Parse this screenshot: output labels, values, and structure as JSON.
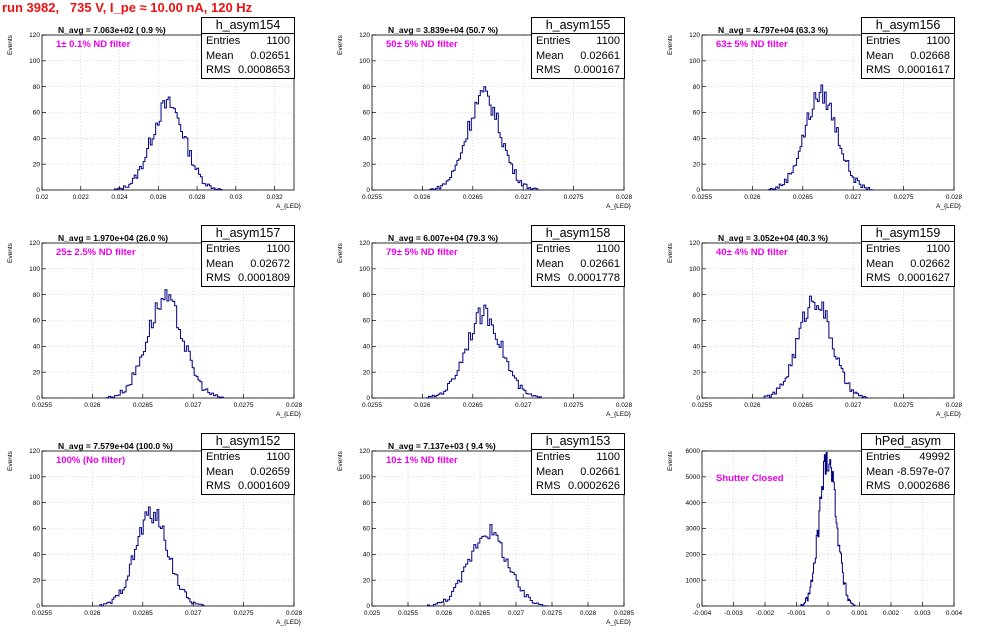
{
  "run_title": "run 3982,   735 V, I_pe ≈ 10.00 nA, 120 Hz",
  "colors": {
    "title": "#ee1111",
    "histogram_line": "#000080",
    "filter_text": "#ee00ee",
    "grid": "#c8c8c8"
  },
  "chart_data": [
    {
      "type": "histogram",
      "name": "h_asym154",
      "n_avg_label": "N_avg = 7.063e+02 ( 0.9 %)",
      "filter_label": "1± 0.1% ND filter",
      "stats": {
        "entries": "1100",
        "mean": "0.02651",
        "rms": "0.0008653"
      },
      "ylabel": "Events",
      "xlabel": "A_{LED}",
      "xlim": [
        0.02,
        0.033
      ],
      "ylim": [
        0,
        120
      ],
      "grid": true,
      "x_ticks": [
        "0.02",
        "0.022",
        "0.024",
        "0.026",
        "0.028",
        "0.03",
        "0.032"
      ],
      "x_tick_values": [
        0.02,
        0.022,
        0.024,
        0.026,
        0.028,
        0.03,
        0.032
      ],
      "y_ticks": [
        "0",
        "20",
        "40",
        "60",
        "80",
        "100",
        "120"
      ],
      "y_tick_values": [
        0,
        20,
        40,
        60,
        80,
        100,
        120
      ],
      "mean_value": 0.02651,
      "rms_value": 0.0008653,
      "peak": 66,
      "entries_value": 1100
    },
    {
      "type": "histogram",
      "name": "h_asym155",
      "n_avg_label": "N_avg = 3.839e+04 (50.7 %)",
      "filter_label": "50± 5% ND filter",
      "stats": {
        "entries": "1100",
        "mean": "0.02661",
        "rms": "0.000167"
      },
      "ylabel": "Events",
      "xlabel": "A_{LED}",
      "xlim": [
        0.0255,
        0.028
      ],
      "ylim": [
        0,
        120
      ],
      "grid": true,
      "x_ticks": [
        "0.0255",
        "0.026",
        "0.0265",
        "0.027",
        "0.0275",
        "0.028"
      ],
      "x_tick_values": [
        0.0255,
        0.026,
        0.0265,
        0.027,
        0.0275,
        0.028
      ],
      "y_ticks": [
        "0",
        "20",
        "40",
        "60",
        "80",
        "100",
        "120"
      ],
      "y_tick_values": [
        0,
        20,
        40,
        60,
        80,
        100,
        120
      ],
      "mean_value": 0.02661,
      "rms_value": 0.000167,
      "peak": 73,
      "entries_value": 1100
    },
    {
      "type": "histogram",
      "name": "h_asym156",
      "n_avg_label": "N_avg = 4.797e+04 (63.3 %)",
      "filter_label": "63± 5% ND filter",
      "stats": {
        "entries": "1100",
        "mean": "0.02668",
        "rms": "0.0001617"
      },
      "ylabel": "Events",
      "xlabel": "A_{LED}",
      "xlim": [
        0.0255,
        0.028
      ],
      "ylim": [
        0,
        120
      ],
      "grid": true,
      "x_ticks": [
        "0.0255",
        "0.026",
        "0.0265",
        "0.027",
        "0.0275",
        "0.028"
      ],
      "x_tick_values": [
        0.0255,
        0.026,
        0.0265,
        0.027,
        0.0275,
        0.028
      ],
      "y_ticks": [
        "0",
        "20",
        "40",
        "60",
        "80",
        "100",
        "120"
      ],
      "y_tick_values": [
        0,
        20,
        40,
        60,
        80,
        100,
        120
      ],
      "mean_value": 0.02668,
      "rms_value": 0.0001617,
      "peak": 74,
      "entries_value": 1100
    },
    {
      "type": "histogram",
      "name": "h_asym157",
      "n_avg_label": "N_avg = 1.970e+04 (26.0 %)",
      "filter_label": "25± 2.5% ND filter",
      "stats": {
        "entries": "1100",
        "mean": "0.02672",
        "rms": "0.0001809"
      },
      "ylabel": "Events",
      "xlabel": "A_{LED}",
      "xlim": [
        0.0255,
        0.028
      ],
      "ylim": [
        0,
        120
      ],
      "grid": true,
      "x_ticks": [
        "0.0255",
        "0.026",
        "0.0265",
        "0.027",
        "0.0275",
        "0.028"
      ],
      "x_tick_values": [
        0.0255,
        0.026,
        0.0265,
        0.027,
        0.0275,
        0.028
      ],
      "y_ticks": [
        "0",
        "20",
        "40",
        "60",
        "80",
        "100",
        "120"
      ],
      "y_tick_values": [
        0,
        20,
        40,
        60,
        80,
        100,
        120
      ],
      "mean_value": 0.02672,
      "rms_value": 0.0001809,
      "peak": 76,
      "entries_value": 1100
    },
    {
      "type": "histogram",
      "name": "h_asym158",
      "n_avg_label": "N_avg = 6.007e+04 (79.3 %)",
      "filter_label": "79± 5% ND filter",
      "stats": {
        "entries": "1100",
        "mean": "0.02661",
        "rms": "0.0001778"
      },
      "ylabel": "Events",
      "xlabel": "A_{LED}",
      "xlim": [
        0.0255,
        0.028
      ],
      "ylim": [
        0,
        120
      ],
      "grid": true,
      "x_ticks": [
        "0.0255",
        "0.026",
        "0.0265",
        "0.027",
        "0.0275",
        "0.028"
      ],
      "x_tick_values": [
        0.0255,
        0.026,
        0.0265,
        0.027,
        0.0275,
        0.028
      ],
      "y_ticks": [
        "0",
        "20",
        "40",
        "60",
        "80",
        "100",
        "120"
      ],
      "y_tick_values": [
        0,
        20,
        40,
        60,
        80,
        100,
        120
      ],
      "mean_value": 0.02661,
      "rms_value": 0.0001778,
      "peak": 65,
      "entries_value": 1100
    },
    {
      "type": "histogram",
      "name": "h_asym159",
      "n_avg_label": "N_avg = 3.052e+04 (40.3 %)",
      "filter_label": "40± 4% ND filter",
      "stats": {
        "entries": "1100",
        "mean": "0.02662",
        "rms": "0.0001627"
      },
      "ylabel": "Events",
      "xlabel": "A_{LED}",
      "xlim": [
        0.0255,
        0.028
      ],
      "ylim": [
        0,
        120
      ],
      "grid": true,
      "x_ticks": [
        "0.0255",
        "0.026",
        "0.0265",
        "0.027",
        "0.0275",
        "0.028"
      ],
      "x_tick_values": [
        0.0255,
        0.026,
        0.0265,
        0.027,
        0.0275,
        0.028
      ],
      "y_ticks": [
        "0",
        "20",
        "40",
        "60",
        "80",
        "100",
        "120"
      ],
      "y_tick_values": [
        0,
        20,
        40,
        60,
        80,
        100,
        120
      ],
      "mean_value": 0.02662,
      "rms_value": 0.0001627,
      "peak": 77,
      "entries_value": 1100
    },
    {
      "type": "histogram",
      "name": "h_asym152",
      "n_avg_label": "N_avg = 7.579e+04 (100.0 %)",
      "filter_label": "100% (No filter)",
      "stats": {
        "entries": "1100",
        "mean": "0.02659",
        "rms": "0.0001609"
      },
      "ylabel": "Events",
      "xlabel": "A_{LED}",
      "xlim": [
        0.0255,
        0.028
      ],
      "ylim": [
        0,
        120
      ],
      "grid": true,
      "x_ticks": [
        "0.0255",
        "0.026",
        "0.0265",
        "0.027",
        "0.0275",
        "0.028"
      ],
      "x_tick_values": [
        0.0255,
        0.026,
        0.0265,
        0.027,
        0.0275,
        0.028
      ],
      "y_ticks": [
        "0",
        "20",
        "40",
        "60",
        "80",
        "100",
        "120"
      ],
      "y_tick_values": [
        0,
        20,
        40,
        60,
        80,
        100,
        120
      ],
      "mean_value": 0.02659,
      "rms_value": 0.0001609,
      "peak": 72,
      "entries_value": 1100
    },
    {
      "type": "histogram",
      "name": "h_asym153",
      "n_avg_label": "N_avg = 7.137e+03 ( 9.4 %)",
      "filter_label": "10± 1% ND filter",
      "stats": {
        "entries": "1100",
        "mean": "0.02661",
        "rms": "0.0002626"
      },
      "ylabel": "Events",
      "xlabel": "A_{LED}",
      "xlim": [
        0.025,
        0.0285
      ],
      "ylim": [
        0,
        120
      ],
      "grid": true,
      "x_ticks": [
        "0.025",
        "0.0255",
        "0.026",
        "0.0265",
        "0.027",
        "0.0275",
        "0.028",
        "0.0285"
      ],
      "x_tick_values": [
        0.025,
        0.0255,
        0.026,
        0.0265,
        0.027,
        0.0275,
        0.028,
        0.0285
      ],
      "y_ticks": [
        "0",
        "20",
        "40",
        "60",
        "80",
        "100",
        "120"
      ],
      "y_tick_values": [
        0,
        20,
        40,
        60,
        80,
        100,
        120
      ],
      "mean_value": 0.02661,
      "rms_value": 0.0002626,
      "peak": 58,
      "entries_value": 1100
    },
    {
      "type": "histogram",
      "name": "hPed_asym",
      "n_avg_label": "",
      "filter_label": "Shutter Closed",
      "stats": {
        "entries": "49992",
        "mean": "-8.597e-07",
        "rms": "0.0002686"
      },
      "ylabel": "Events",
      "xlabel": "",
      "xlim": [
        -0.004,
        0.004
      ],
      "ylim": [
        0,
        6000
      ],
      "grid": true,
      "x_ticks": [
        "-0.004",
        "-0.003",
        "-0.002",
        "-0.001",
        "0",
        "0.001",
        "0.002",
        "0.003",
        "0.004"
      ],
      "x_tick_values": [
        -0.004,
        -0.003,
        -0.002,
        -0.001,
        0,
        0.001,
        0.002,
        0.003,
        0.004
      ],
      "y_ticks": [
        "0",
        "1000",
        "2000",
        "3000",
        "4000",
        "5000",
        "6000"
      ],
      "y_tick_values": [
        0,
        1000,
        2000,
        3000,
        4000,
        5000,
        6000
      ],
      "mean_value": -8.597e-07,
      "rms_value": 0.0002686,
      "peak": 5800,
      "entries_value": 49992
    }
  ]
}
